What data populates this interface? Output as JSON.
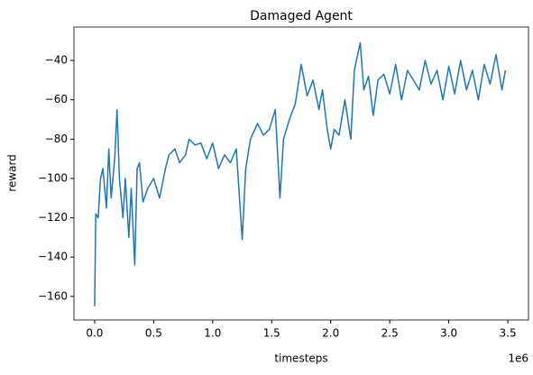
{
  "chart_data": {
    "type": "line",
    "title": "Damaged Agent",
    "xlabel": "timesteps",
    "ylabel": "reward",
    "x_offset_label": "1e6",
    "color": "#1f77b4",
    "grid": false,
    "x": [
      0,
      10000,
      30000,
      50000,
      70000,
      100000,
      120000,
      140000,
      170000,
      190000,
      210000,
      240000,
      260000,
      290000,
      310000,
      340000,
      360000,
      380000,
      410000,
      450000,
      500000,
      550000,
      600000,
      630000,
      680000,
      720000,
      770000,
      800000,
      850000,
      900000,
      950000,
      1000000,
      1050000,
      1100000,
      1150000,
      1200000,
      1250000,
      1280000,
      1320000,
      1380000,
      1430000,
      1480000,
      1530000,
      1570000,
      1600000,
      1650000,
      1700000,
      1750000,
      1800000,
      1850000,
      1900000,
      1930000,
      1970000,
      2000000,
      2030000,
      2070000,
      2120000,
      2170000,
      2200000,
      2250000,
      2280000,
      2320000,
      2360000,
      2400000,
      2450000,
      2500000,
      2550000,
      2600000,
      2650000,
      2700000,
      2750000,
      2800000,
      2850000,
      2900000,
      2950000,
      3000000,
      3050000,
      3100000,
      3150000,
      3200000,
      3250000,
      3300000,
      3350000,
      3400000,
      3450000,
      3480000
    ],
    "values": [
      -165,
      -118,
      -120,
      -100,
      -95,
      -115,
      -85,
      -110,
      -90,
      -65,
      -100,
      -120,
      -100,
      -130,
      -105,
      -144,
      -95,
      -92,
      -112,
      -105,
      -100,
      -110,
      -95,
      -88,
      -85,
      -92,
      -88,
      -80,
      -83,
      -82,
      -90,
      -82,
      -95,
      -88,
      -92,
      -85,
      -131,
      -95,
      -80,
      -72,
      -78,
      -75,
      -65,
      -110,
      -80,
      -70,
      -62,
      -42,
      -58,
      -50,
      -65,
      -55,
      -75,
      -85,
      -75,
      -78,
      -60,
      -80,
      -45,
      -31,
      -55,
      -48,
      -68,
      -50,
      -47,
      -57,
      -42,
      -60,
      -45,
      -50,
      -55,
      -40,
      -52,
      -45,
      -60,
      -43,
      -57,
      -40,
      -55,
      -45,
      -60,
      -42,
      -52,
      -37,
      -55,
      -45
    ],
    "xlim": [
      -175000,
      3675000
    ],
    "xticks": [
      {
        "value": 0,
        "label": "0.0"
      },
      {
        "value": 500000,
        "label": "0.5"
      },
      {
        "value": 1000000,
        "label": "1.0"
      },
      {
        "value": 1500000,
        "label": "1.5"
      },
      {
        "value": 2000000,
        "label": "2.0"
      },
      {
        "value": 2500000,
        "label": "2.5"
      },
      {
        "value": 3000000,
        "label": "3.0"
      },
      {
        "value": 3500000,
        "label": "3.5"
      }
    ],
    "ylim": [
      -172,
      -23
    ],
    "yticks": [
      {
        "value": -160,
        "label": "−160"
      },
      {
        "value": -140,
        "label": "−140"
      },
      {
        "value": -120,
        "label": "−120"
      },
      {
        "value": -100,
        "label": "−100"
      },
      {
        "value": -80,
        "label": "−80"
      },
      {
        "value": -60,
        "label": "−60"
      },
      {
        "value": -40,
        "label": "−40"
      }
    ]
  }
}
